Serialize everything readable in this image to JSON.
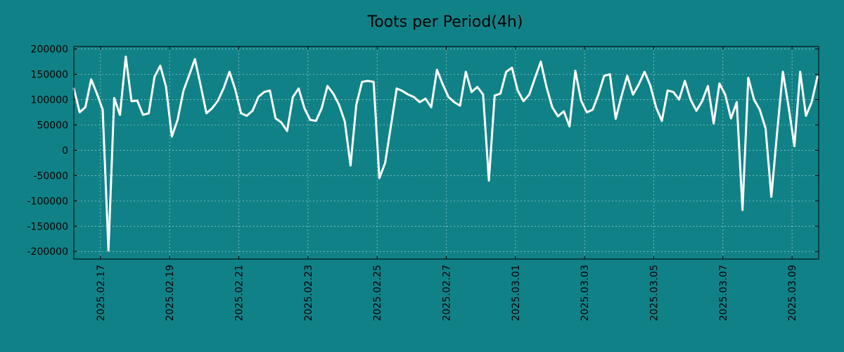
{
  "chart_data": {
    "type": "line",
    "title": "Toots per Period(4h)",
    "xlabel": "",
    "ylabel": "",
    "ylim": [
      -215000,
      205000
    ],
    "grid": true,
    "colors": {
      "background": "#108287",
      "line": "#ffffff",
      "axis": "#000000",
      "grid": "#d7e6e6"
    },
    "yticks": [
      200000,
      150000,
      100000,
      50000,
      0,
      -50000,
      -100000,
      -150000,
      -200000
    ],
    "ytick_labels": [
      "200000",
      "150000",
      "100000",
      "50000",
      "0",
      "-50000",
      "-100000",
      "-150000",
      "-200000"
    ],
    "xticks": [
      {
        "day": 1.0,
        "label": "2025.02.17"
      },
      {
        "day": 3.0,
        "label": "2025.02.19"
      },
      {
        "day": 5.0,
        "label": "2025.02.21"
      },
      {
        "day": 7.0,
        "label": "2025.02.23"
      },
      {
        "day": 9.0,
        "label": "2025.02.25"
      },
      {
        "day": 11.0,
        "label": "2025.02.27"
      },
      {
        "day": 13.0,
        "label": "2025.03.01"
      },
      {
        "day": 15.0,
        "label": "2025.03.03"
      },
      {
        "day": 17.0,
        "label": "2025.03.05"
      },
      {
        "day": 19.0,
        "label": "2025.03.07"
      },
      {
        "day": 21.0,
        "label": "2025.03.09"
      }
    ],
    "xlim": [
      0.23,
      21.77
    ],
    "x_start_day": 0.23,
    "x_step_days": 0.1667,
    "series": [
      {
        "name": "toots",
        "values": [
          122000,
          75000,
          85000,
          140000,
          112000,
          80000,
          -198000,
          103000,
          70000,
          185000,
          97000,
          98000,
          70000,
          73000,
          145000,
          167000,
          125000,
          27000,
          60000,
          117000,
          148000,
          180000,
          128000,
          73000,
          83000,
          98000,
          123000,
          155000,
          120000,
          73000,
          68000,
          78000,
          105000,
          115000,
          118000,
          63000,
          55000,
          38000,
          105000,
          122000,
          83000,
          60000,
          58000,
          83000,
          127000,
          112000,
          90000,
          57000,
          -30000,
          90000,
          135000,
          137000,
          135000,
          -55000,
          -25000,
          48000,
          122000,
          117000,
          110000,
          105000,
          95000,
          102000,
          85000,
          159000,
          130000,
          105000,
          95000,
          88000,
          155000,
          115000,
          125000,
          110000,
          -60000,
          108000,
          112000,
          155000,
          163000,
          118000,
          97000,
          110000,
          143000,
          175000,
          125000,
          85000,
          67000,
          77000,
          47000,
          157000,
          98000,
          75000,
          80000,
          110000,
          147000,
          150000,
          62000,
          107000,
          147000,
          110000,
          130000,
          155000,
          128000,
          85000,
          58000,
          118000,
          115000,
          100000,
          137000,
          100000,
          78000,
          97000,
          127000,
          53000,
          132000,
          110000,
          63000,
          95000,
          -118000,
          143000,
          100000,
          80000,
          43000,
          -92000,
          35000,
          155000,
          85000,
          8000,
          155000,
          68000,
          95000,
          145000
        ]
      }
    ]
  }
}
